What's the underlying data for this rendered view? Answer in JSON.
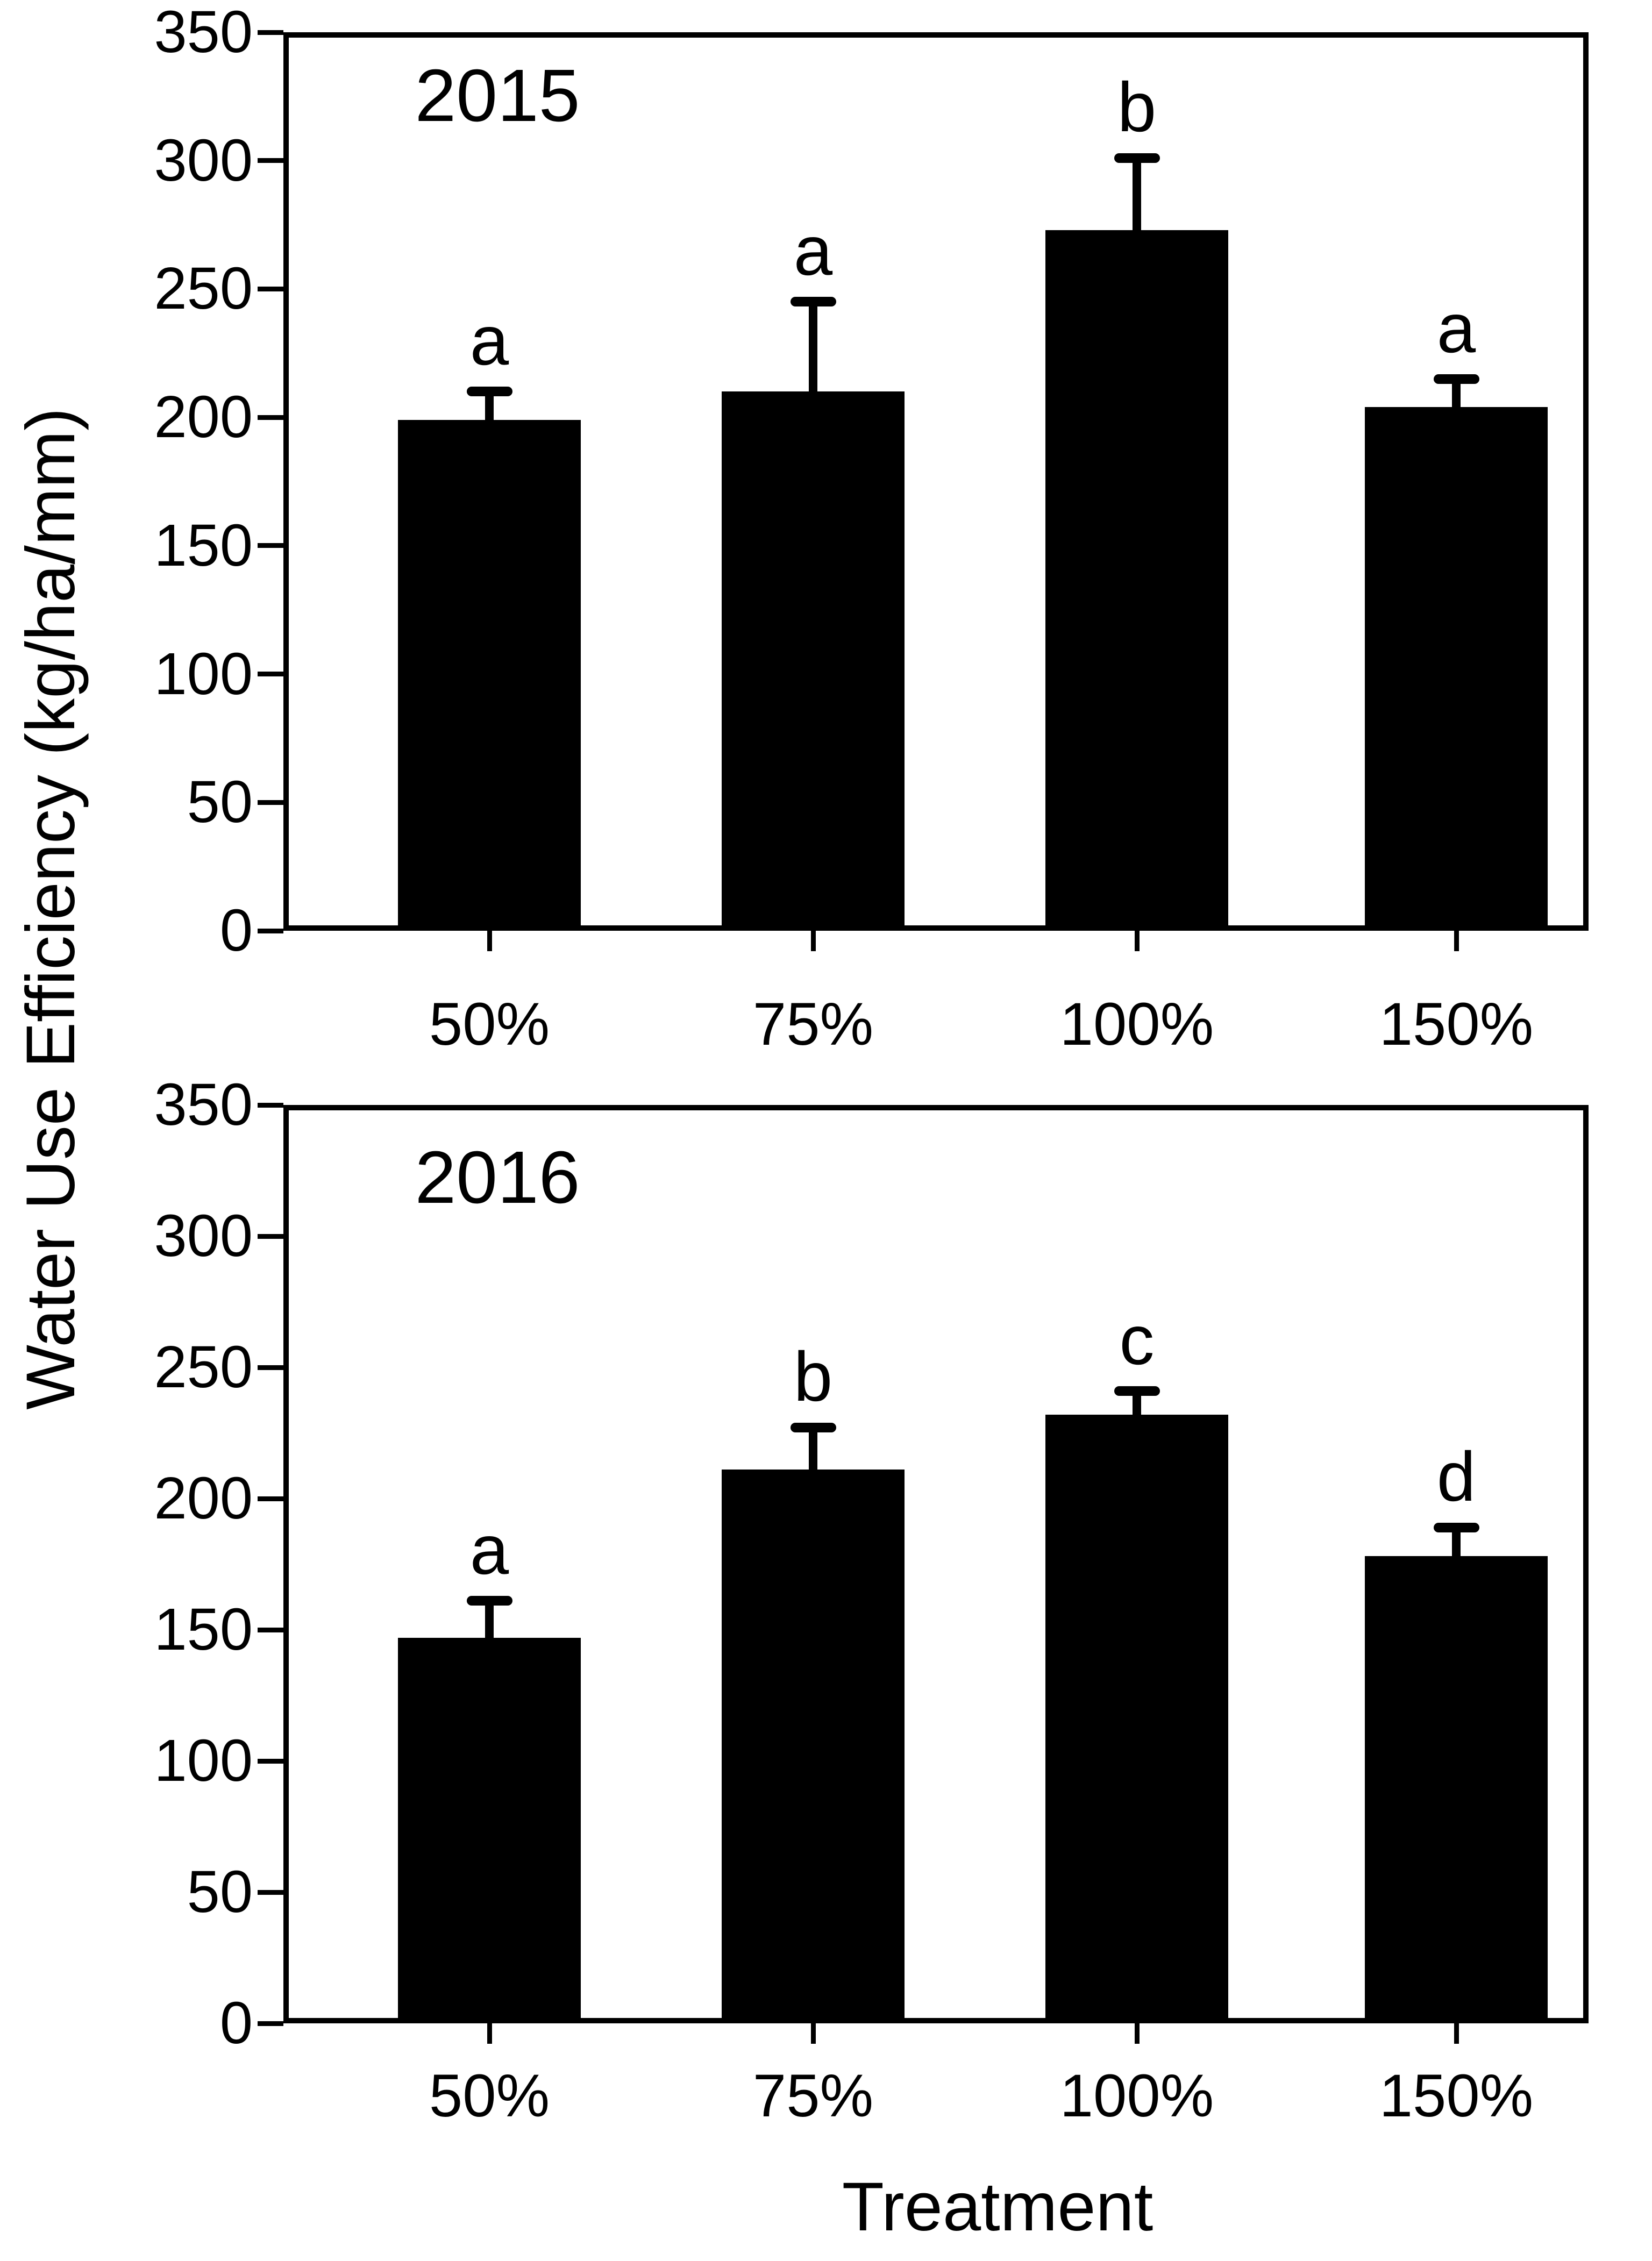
{
  "figure": {
    "ylabel": "Water Use Efficiency (kg/ha/mm)",
    "xlabel": "Treatment",
    "background_color": "#ffffff",
    "ink_color": "#000000"
  },
  "chart_data": [
    {
      "type": "bar",
      "title": "2015",
      "categories": [
        "50%",
        "75%",
        "100%",
        "150%"
      ],
      "values": [
        199,
        210,
        273,
        204
      ],
      "error_plus": [
        11,
        35,
        28,
        11
      ],
      "sig_letters": [
        "a",
        "a",
        "b",
        "a"
      ],
      "ylim": [
        0,
        350
      ],
      "yticks": [
        0,
        50,
        100,
        150,
        200,
        250,
        300,
        350
      ],
      "xlabel": "",
      "ylabel": "Water Use Efficiency (kg/ha/mm)",
      "grid": false,
      "legend": "none",
      "bar_color": "#000000"
    },
    {
      "type": "bar",
      "title": "2016",
      "categories": [
        "50%",
        "75%",
        "100%",
        "150%"
      ],
      "values": [
        147,
        211,
        232,
        178
      ],
      "error_plus": [
        14,
        16,
        9,
        11
      ],
      "sig_letters": [
        "a",
        "b",
        "c",
        "d"
      ],
      "ylim": [
        0,
        350
      ],
      "yticks": [
        0,
        50,
        100,
        150,
        200,
        250,
        300,
        350
      ],
      "xlabel": "Treatment",
      "ylabel": "Water Use Efficiency (kg/ha/mm)",
      "grid": false,
      "legend": "none",
      "bar_color": "#000000"
    }
  ]
}
